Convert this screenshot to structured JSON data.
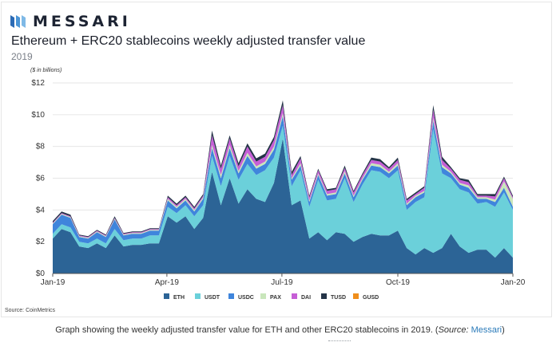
{
  "brand": {
    "name": "MESSARI"
  },
  "chart_data": {
    "type": "area",
    "stacked": true,
    "title": "Ethereum + ERC20 stablecoins weekly adjusted transfer value",
    "subtitle": "2019",
    "unit_label": "($ in billions)",
    "xlabel": "",
    "ylabel": "",
    "ylim": [
      0,
      12
    ],
    "y_ticks": [
      0,
      2,
      4,
      6,
      8,
      10,
      12
    ],
    "y_tick_labels": [
      "$0",
      "$2",
      "$4",
      "$6",
      "$8",
      "$10",
      "$12"
    ],
    "x_tick_positions": [
      0,
      12.9,
      25.9,
      39,
      52
    ],
    "x_tick_labels": [
      "Jan-19",
      "Apr-19",
      "Jul-19",
      "Oct-19",
      "Jan-20"
    ],
    "grid": true,
    "legend_position": "bottom",
    "x": [
      0,
      1,
      2,
      3,
      4,
      5,
      6,
      7,
      8,
      9,
      10,
      11,
      12,
      13,
      14,
      15,
      16,
      17,
      18,
      19,
      20,
      21,
      22,
      23,
      24,
      25,
      26,
      27,
      28,
      29,
      30,
      31,
      32,
      33,
      34,
      35,
      36,
      37,
      38,
      39,
      40,
      41,
      42,
      43,
      44,
      45,
      46,
      47,
      48,
      49,
      50,
      51,
      52
    ],
    "series": [
      {
        "name": "ETH",
        "color": "#2c6496",
        "values": [
          2.2,
          2.8,
          2.6,
          1.7,
          1.6,
          1.9,
          1.6,
          2.4,
          1.7,
          1.8,
          1.8,
          1.9,
          1.9,
          3.6,
          3.2,
          3.6,
          2.8,
          3.5,
          6.4,
          4.3,
          6.0,
          4.4,
          5.3,
          4.7,
          4.5,
          5.7,
          8.5,
          4.3,
          4.6,
          2.2,
          2.6,
          2.1,
          2.6,
          2.5,
          2.0,
          2.3,
          2.5,
          2.4,
          2.4,
          2.7,
          1.6,
          1.2,
          1.6,
          1.3,
          1.6,
          2.5,
          1.7,
          1.3,
          1.5,
          1.5,
          1.0,
          1.6,
          1.0
        ]
      },
      {
        "name": "USDT",
        "color": "#6bd0da",
        "values": [
          0.3,
          0.3,
          0.3,
          0.3,
          0.3,
          0.3,
          0.3,
          0.4,
          0.4,
          0.4,
          0.4,
          0.5,
          0.5,
          0.6,
          0.6,
          0.7,
          0.8,
          0.8,
          1.0,
          1.2,
          1.4,
          1.5,
          1.6,
          1.5,
          2.0,
          1.6,
          0.8,
          1.2,
          1.9,
          2.0,
          3.3,
          2.5,
          2.1,
          3.5,
          2.5,
          3.3,
          4.0,
          4.0,
          3.6,
          3.8,
          2.4,
          3.3,
          3.2,
          7.8,
          4.7,
          3.5,
          3.6,
          3.8,
          2.9,
          3.0,
          3.2,
          3.5,
          3.0
        ]
      },
      {
        "name": "USDC",
        "color": "#3f85dc",
        "values": [
          0.6,
          0.6,
          0.6,
          0.3,
          0.3,
          0.4,
          0.4,
          0.6,
          0.3,
          0.3,
          0.3,
          0.3,
          0.3,
          0.4,
          0.3,
          0.3,
          0.3,
          0.4,
          0.5,
          0.5,
          0.5,
          0.4,
          0.5,
          0.4,
          0.4,
          0.5,
          0.6,
          0.4,
          0.3,
          0.3,
          0.3,
          0.3,
          0.3,
          0.3,
          0.3,
          0.3,
          0.3,
          0.3,
          0.3,
          0.3,
          0.3,
          0.3,
          0.3,
          0.5,
          0.4,
          0.3,
          0.3,
          0.3,
          0.3,
          0.2,
          0.3,
          0.3,
          0.2
        ]
      },
      {
        "name": "PAX",
        "color": "#c9e6bb",
        "values": [
          0.05,
          0.05,
          0.05,
          0.05,
          0.05,
          0.05,
          0.05,
          0.05,
          0.05,
          0.05,
          0.05,
          0.05,
          0.05,
          0.1,
          0.1,
          0.1,
          0.1,
          0.1,
          0.2,
          0.2,
          0.2,
          0.15,
          0.2,
          0.15,
          0.15,
          0.2,
          0.2,
          0.1,
          0.15,
          0.1,
          0.1,
          0.1,
          0.1,
          0.15,
          0.1,
          0.1,
          0.15,
          0.15,
          0.1,
          0.15,
          0.1,
          0.1,
          0.1,
          0.2,
          0.15,
          0.1,
          0.1,
          0.15,
          0.1,
          0.1,
          0.15,
          0.4,
          0.5
        ]
      },
      {
        "name": "DAI",
        "color": "#c65fd6",
        "values": [
          0.05,
          0.05,
          0.05,
          0.05,
          0.05,
          0.05,
          0.05,
          0.05,
          0.05,
          0.05,
          0.05,
          0.05,
          0.05,
          0.1,
          0.1,
          0.1,
          0.1,
          0.1,
          0.6,
          0.4,
          0.4,
          0.3,
          0.4,
          0.3,
          0.3,
          0.4,
          0.5,
          0.2,
          0.3,
          0.2,
          0.2,
          0.2,
          0.2,
          0.2,
          0.2,
          0.2,
          0.2,
          0.2,
          0.2,
          0.2,
          0.2,
          0.1,
          0.2,
          0.5,
          0.3,
          0.2,
          0.2,
          0.2,
          0.1,
          0.1,
          0.2,
          0.2,
          0.1
        ]
      },
      {
        "name": "TUSD",
        "color": "#243447",
        "values": [
          0.1,
          0.1,
          0.1,
          0.05,
          0.05,
          0.05,
          0.05,
          0.1,
          0.05,
          0.05,
          0.05,
          0.05,
          0.05,
          0.1,
          0.1,
          0.1,
          0.1,
          0.1,
          0.3,
          0.2,
          0.2,
          0.2,
          0.2,
          0.2,
          0.2,
          0.2,
          0.3,
          0.2,
          0.15,
          0.1,
          0.1,
          0.1,
          0.1,
          0.15,
          0.1,
          0.1,
          0.15,
          0.15,
          0.1,
          0.15,
          0.1,
          0.1,
          0.1,
          0.3,
          0.2,
          0.1,
          0.1,
          0.15,
          0.1,
          0.1,
          0.15,
          0.1,
          0.1
        ]
      },
      {
        "name": "GUSD",
        "color": "#ef8e1c",
        "values": [
          0,
          0,
          0,
          0,
          0,
          0,
          0,
          0,
          0,
          0,
          0,
          0,
          0,
          0,
          0,
          0,
          0,
          0,
          0,
          0,
          0,
          0,
          0,
          0,
          0,
          0,
          0,
          0,
          0,
          0,
          0,
          0,
          0,
          0,
          0,
          0,
          0,
          0,
          0,
          0,
          0,
          0,
          0,
          0,
          0,
          0,
          0,
          0,
          0,
          0,
          0,
          0,
          0
        ]
      }
    ]
  },
  "source_note": "Source: CoinMetrics",
  "caption": {
    "text_before": "Graph showing the weekly adjusted transfer value for ETH and other ERC20 stablecoins in 2019. (",
    "source_word": "Source:",
    "space": " ",
    "link_text": "Messari",
    "text_after": ")"
  }
}
